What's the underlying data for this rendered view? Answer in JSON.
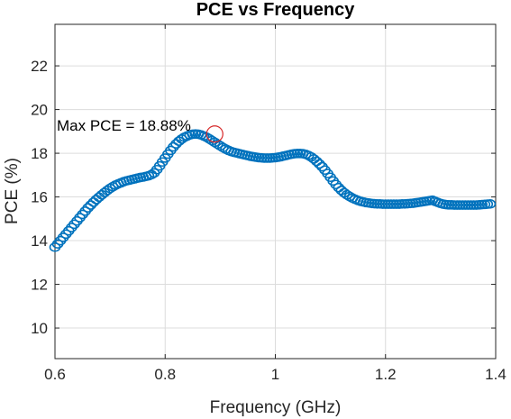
{
  "chart_data": {
    "type": "scatter",
    "title": "PCE vs Frequency",
    "xlabel": "Frequency (GHz)",
    "ylabel": "PCE (%)",
    "xlim": [
      0.6,
      1.4
    ],
    "ylim": [
      8.6,
      23.9
    ],
    "xticks": [
      0.6,
      0.8,
      1.0,
      1.2,
      1.4
    ],
    "xtick_labels": [
      "0.6",
      "0.8",
      "1",
      "1.2",
      "1.4"
    ],
    "yticks": [
      10,
      12,
      14,
      16,
      18,
      20,
      22
    ],
    "ytick_labels": [
      "10",
      "12",
      "14",
      "16",
      "18",
      "20",
      "22"
    ],
    "grid": true,
    "marker": "circle",
    "series_color": "#0072BD",
    "highlight_color": "#D62728",
    "x_start": 0.6,
    "x_step": 0.005,
    "values": [
      13.7,
      13.85,
      14.0,
      14.15,
      14.3,
      14.45,
      14.6,
      14.75,
      14.9,
      15.05,
      15.2,
      15.35,
      15.5,
      15.63,
      15.76,
      15.88,
      15.99,
      16.1,
      16.2,
      16.3,
      16.39,
      16.47,
      16.54,
      16.6,
      16.65,
      16.7,
      16.74,
      16.77,
      16.8,
      16.83,
      16.86,
      16.89,
      16.91,
      16.94,
      16.97,
      17.02,
      17.1,
      17.25,
      17.42,
      17.6,
      17.78,
      17.96,
      18.13,
      18.29,
      18.43,
      18.55,
      18.65,
      18.73,
      18.79,
      18.84,
      18.87,
      18.88,
      18.87,
      18.84,
      18.79,
      18.73,
      18.66,
      18.58,
      18.5,
      18.42,
      18.34,
      18.26,
      18.19,
      18.13,
      18.08,
      18.04,
      18.01,
      17.98,
      17.95,
      17.92,
      17.89,
      17.86,
      17.84,
      17.82,
      17.8,
      17.79,
      17.78,
      17.78,
      17.78,
      17.79,
      17.8,
      17.82,
      17.84,
      17.87,
      17.9,
      17.93,
      17.96,
      17.98,
      17.99,
      17.99,
      17.98,
      17.95,
      17.9,
      17.83,
      17.74,
      17.63,
      17.51,
      17.38,
      17.23,
      17.07,
      16.9,
      16.73,
      16.57,
      16.43,
      16.3,
      16.19,
      16.1,
      16.02,
      15.95,
      15.89,
      15.84,
      15.8,
      15.77,
      15.74,
      15.72,
      15.7,
      15.69,
      15.68,
      15.68,
      15.67,
      15.67,
      15.67,
      15.67,
      15.67,
      15.67,
      15.67,
      15.68,
      15.68,
      15.69,
      15.7,
      15.71,
      15.73,
      15.75,
      15.77,
      15.79,
      15.81,
      15.83,
      15.85,
      15.8,
      15.75,
      15.7,
      15.67,
      15.65,
      15.64,
      15.64,
      15.63,
      15.63,
      15.63,
      15.63,
      15.63,
      15.63,
      15.63,
      15.63,
      15.63,
      15.64,
      15.65,
      15.66,
      15.67,
      15.68
    ],
    "annotation": {
      "text": "Max PCE = 18.88%",
      "x": 0.89,
      "y": 18.88
    }
  }
}
